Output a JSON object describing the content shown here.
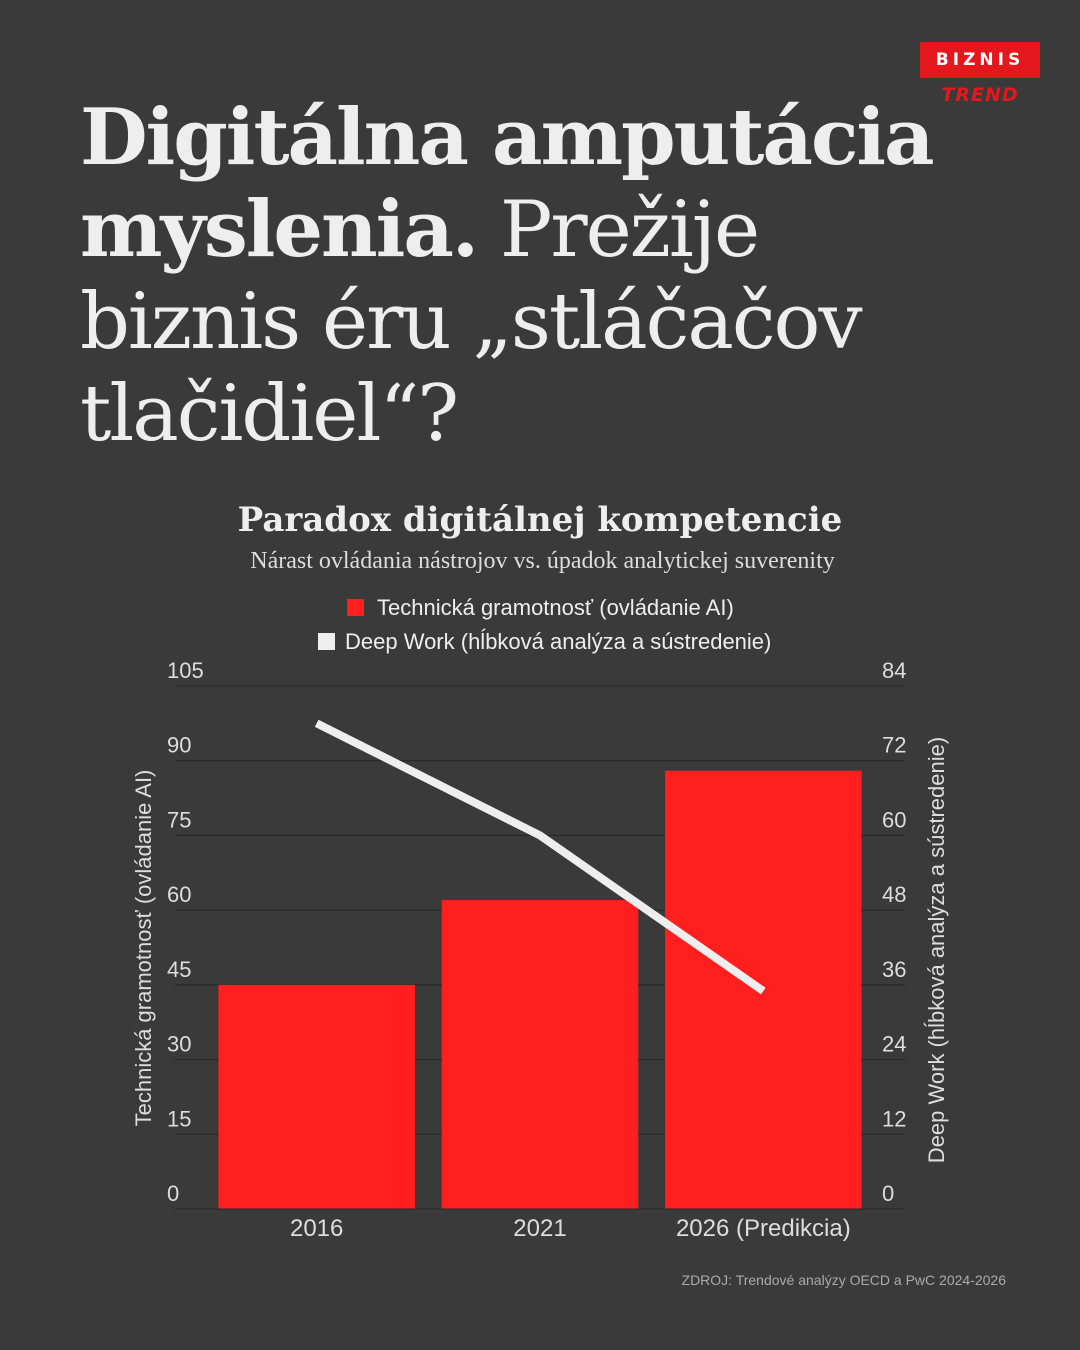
{
  "brand": {
    "top": "BIZNIS",
    "bottom": "TREND",
    "accent": "#e3171c"
  },
  "headline": {
    "bold": "Digitálna amputácia myslenia.",
    "light": " Prežije biznis éru „stláčačov tlačidiel“?"
  },
  "chart_data": {
    "type": "bar",
    "title": "Paradox digitálnej kompetencie",
    "subtitle": "Nárast ovládania nástrojov vs. úpadok analytickej suverenity",
    "categories": [
      "2016",
      "2021",
      "2026 (Predikcia)"
    ],
    "series": [
      {
        "name": "Technická gramotnosť (ovládanie AI)",
        "kind": "bar",
        "axis": "left",
        "color": "#ff1f1f",
        "values": [
          45,
          62,
          88
        ]
      },
      {
        "name": "Deep Work (hĺbková analýza a sústredenie)",
        "kind": "line",
        "axis": "right",
        "color": "#eeeeee",
        "values": [
          78,
          60,
          35
        ]
      }
    ],
    "ylabel": "Technická gramotnosť (ovládanie AI)",
    "y2label": "Deep Work (hĺbková analýza a sústredenie)",
    "ylim": [
      0,
      105
    ],
    "y2lim": [
      0,
      84
    ],
    "yticks": [
      "0",
      "15",
      "30",
      "45",
      "60",
      "75",
      "90",
      "105"
    ],
    "y2ticks": [
      "0",
      "12",
      "24",
      "36",
      "48",
      "60",
      "72",
      "84"
    ],
    "legend": "top-center",
    "grid": true
  },
  "source": "ZDROJ: Trendové analýzy OECD a PwC 2024-2026"
}
